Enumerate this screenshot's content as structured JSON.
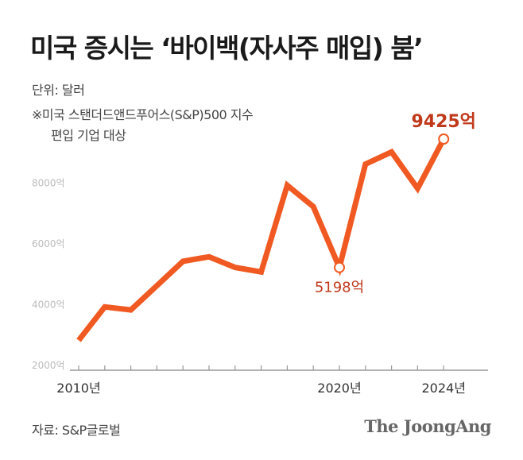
{
  "title": "미국 증시는 ‘바이백(자사주 매입) 붐’",
  "unit_label": "단위: 달러",
  "note_line1": "※미국 스탠더드앤드푸어스(S&P)500 지수",
  "note_line2": "편입 기업 대상",
  "source": "자료: S&P글로벌",
  "brand": "The JoongAng",
  "colors": {
    "line": "#f05a22",
    "annotation": "#c0391b",
    "axis": "#999999",
    "tick_text": "#bbbbbb"
  },
  "chart_data": {
    "type": "line",
    "x_labels_shown": [
      "2010년",
      "2020년",
      "2024년"
    ],
    "y_ticks": [
      2000,
      4000,
      6000,
      8000
    ],
    "y_tick_labels": [
      "2000억",
      "4000억",
      "6000억",
      "8000억"
    ],
    "ylim": [
      2000,
      10000
    ],
    "series": [
      {
        "x": [
          2009.5,
          2010.5,
          2011.5,
          2012.5,
          2013.5,
          2014.5,
          2015.5,
          2016.5,
          2017.5,
          2018.5,
          2019.5,
          2020.5,
          2021.5,
          2022.5,
          2023.5
        ],
        "values": [
          2800,
          3900,
          3800,
          4600,
          5400,
          5550,
          5200,
          5050,
          7900,
          7200,
          5198,
          8600,
          9000,
          7800,
          9425
        ]
      }
    ],
    "annotations": [
      {
        "text": "5198억",
        "value": 5198
      },
      {
        "text": "9425억",
        "value": 9425
      }
    ],
    "grid": false
  }
}
